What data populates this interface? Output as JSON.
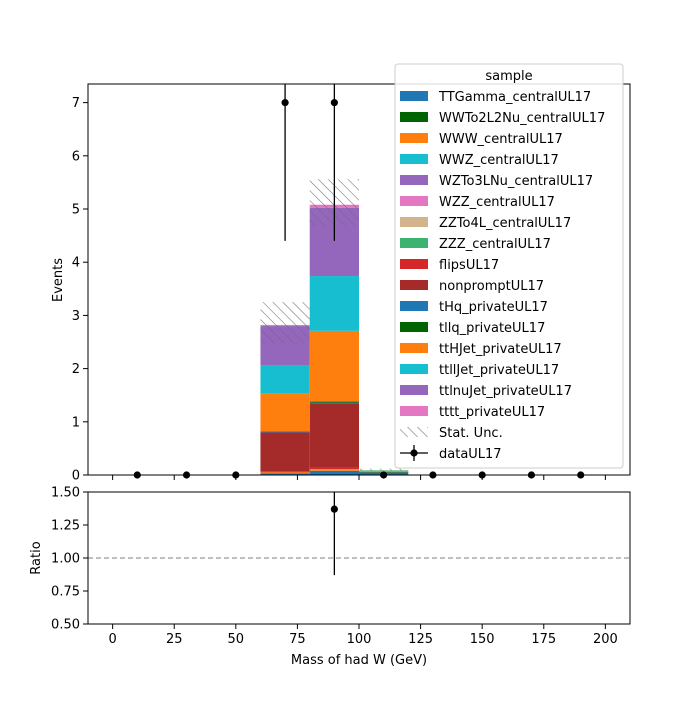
{
  "chart_data": {
    "type": "bar",
    "stacked": true,
    "bin_edges": [
      0,
      20,
      40,
      60,
      80,
      100,
      120,
      140,
      160,
      180,
      200
    ],
    "bin_centers": [
      10,
      30,
      50,
      70,
      90,
      110,
      130,
      150,
      170,
      190
    ],
    "xlabel": "Mass of had W (GeV)",
    "xlim": [
      -10,
      210
    ],
    "xticks": [
      0,
      25,
      50,
      75,
      100,
      125,
      150,
      175,
      200
    ],
    "main": {
      "ylabel": "Events",
      "ylim": [
        0,
        7.35
      ],
      "yticks": [
        0,
        1,
        2,
        3,
        4,
        5,
        6,
        7
      ]
    },
    "ratio": {
      "ylabel": "Ratio",
      "ylim": [
        0.5,
        1.5
      ],
      "yticks": [
        "0.50",
        "0.75",
        "1.00",
        "1.25",
        "1.50"
      ],
      "reference_line": 1.0,
      "points": [
        {
          "x": 90,
          "y": 1.37,
          "yerr_low": 0.5,
          "yerr_high": 0.5
        }
      ]
    },
    "legend": {
      "title": "sample",
      "placement": "top-right"
    },
    "series": [
      {
        "name": "TTGamma_centralUL17",
        "color": "#1f77b4",
        "values": [
          0,
          0,
          0,
          0.03,
          0.08,
          0.03,
          0,
          0,
          0,
          0
        ]
      },
      {
        "name": "WWTo2L2Nu_centralUL17",
        "color": "#006400",
        "values": [
          0,
          0,
          0,
          0,
          0,
          0.02,
          0,
          0,
          0,
          0
        ]
      },
      {
        "name": "WWW_centralUL17",
        "color": "#ff7f0e",
        "values": [
          0,
          0,
          0,
          0.02,
          0.02,
          0,
          0,
          0,
          0,
          0
        ]
      },
      {
        "name": "WWZ_centralUL17",
        "color": "#17becf",
        "values": [
          0,
          0,
          0,
          0,
          0.01,
          0,
          0,
          0,
          0,
          0
        ]
      },
      {
        "name": "WZTo3LNu_centralUL17",
        "color": "#9467bd",
        "values": [
          0,
          0,
          0,
          0,
          0,
          0.02,
          0,
          0,
          0,
          0
        ]
      },
      {
        "name": "WZZ_centralUL17",
        "color": "#e377c2",
        "values": [
          0,
          0,
          0,
          0,
          0,
          0,
          0,
          0,
          0,
          0
        ]
      },
      {
        "name": "ZZTo4L_centralUL17",
        "color": "#d2b48c",
        "values": [
          0,
          0,
          0,
          0,
          0,
          0.01,
          0,
          0,
          0,
          0
        ]
      },
      {
        "name": "ZZZ_centralUL17",
        "color": "#3cb371",
        "values": [
          0,
          0,
          0,
          0,
          0,
          0.01,
          0,
          0,
          0,
          0
        ]
      },
      {
        "name": "flipsUL17",
        "color": "#d62728",
        "values": [
          0,
          0,
          0,
          0.02,
          0.04,
          0,
          0,
          0,
          0,
          0
        ]
      },
      {
        "name": "nonpromptUL17",
        "color": "#a52a2a",
        "values": [
          0,
          0,
          0,
          0.73,
          1.2,
          0,
          0,
          0,
          0,
          0
        ]
      },
      {
        "name": "tHq_privateUL17",
        "color": "#1f77b4",
        "values": [
          0,
          0,
          0,
          0.01,
          0.01,
          0,
          0,
          0,
          0,
          0
        ]
      },
      {
        "name": "tllq_privateUL17",
        "color": "#006400",
        "values": [
          0,
          0,
          0,
          0.01,
          0.02,
          0,
          0,
          0,
          0,
          0
        ]
      },
      {
        "name": "ttHJet_privateUL17",
        "color": "#ff7f0e",
        "values": [
          0,
          0,
          0,
          0.72,
          1.33,
          0,
          0,
          0,
          0,
          0
        ]
      },
      {
        "name": "ttllJet_privateUL17",
        "color": "#17becf",
        "values": [
          0,
          0,
          0,
          0.52,
          1.03,
          0,
          0,
          0,
          0,
          0
        ]
      },
      {
        "name": "ttlnuJet_privateUL17",
        "color": "#9467bd",
        "values": [
          0,
          0,
          0,
          0.74,
          1.28,
          0,
          0,
          0,
          0,
          0
        ]
      },
      {
        "name": "tttt_privateUL17",
        "color": "#e377c2",
        "values": [
          0,
          0,
          0,
          0.02,
          0.06,
          0,
          0,
          0,
          0,
          0
        ]
      }
    ],
    "stat_unc": {
      "name": "Stat. Unc.",
      "low": [
        0,
        0,
        0,
        2.47,
        4.68,
        0.08,
        0,
        0,
        0,
        0
      ],
      "high": [
        0,
        0,
        0,
        3.25,
        5.56,
        0.12,
        0,
        0,
        0,
        0
      ]
    },
    "data": {
      "name": "dataUL17",
      "x": [
        10,
        30,
        50,
        70,
        90,
        110,
        130,
        150,
        170,
        190
      ],
      "y": [
        0,
        0,
        0,
        7,
        7,
        0,
        0,
        0,
        0,
        0
      ],
      "yerr": [
        0,
        0,
        0,
        2.6,
        2.6,
        0,
        0,
        0,
        0,
        0
      ]
    }
  }
}
